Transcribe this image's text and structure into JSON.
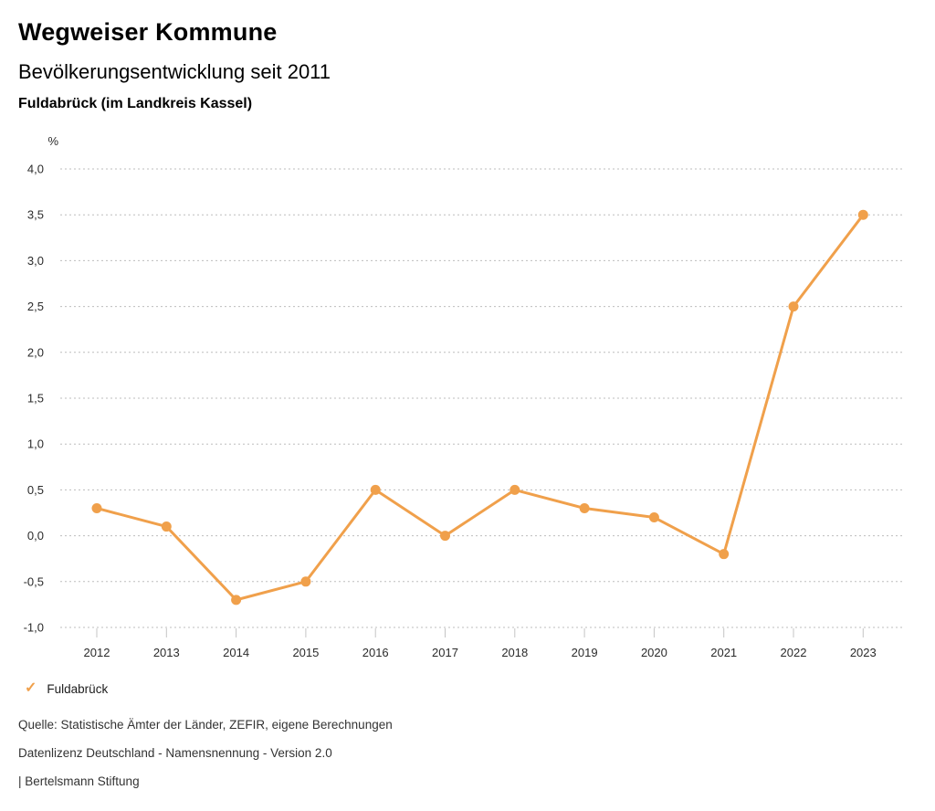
{
  "header": {
    "title": "Wegweiser Kommune",
    "subtitle": "Bevölkerungsentwicklung seit 2011",
    "location": "Fuldabrück (im Landkreis Kassel)"
  },
  "chart_data": {
    "type": "line",
    "title": "Bevölkerungsentwicklung seit 2011",
    "location": "Fuldabrück (im Landkreis Kassel)",
    "ylabel": "%",
    "xlabel": "",
    "categories": [
      "2012",
      "2013",
      "2014",
      "2015",
      "2016",
      "2017",
      "2018",
      "2019",
      "2020",
      "2021",
      "2022",
      "2023"
    ],
    "series": [
      {
        "name": "Fuldabrück",
        "values": [
          0.3,
          0.1,
          -0.7,
          -0.5,
          0.5,
          0.0,
          0.5,
          0.3,
          0.2,
          -0.2,
          2.5,
          3.5
        ],
        "color": "#F0A04B"
      }
    ],
    "ylim": [
      -1.0,
      4.0
    ],
    "ytick_step": 0.5,
    "grid": "horizontal-dotted",
    "legend_position": "bottom-left",
    "decimal_separator": ","
  },
  "legend": {
    "items": [
      {
        "icon": "check-icon",
        "label": "Fuldabrück",
        "color": "#F0A04B"
      }
    ]
  },
  "footer": {
    "source": "Quelle: Statistische Ämter der Länder, ZEFIR, eigene Berechnungen",
    "license": "Datenlizenz Deutschland - Namensnennung - Version 2.0",
    "attribution": "| Bertelsmann Stiftung"
  },
  "colors": {
    "accent": "#F0A04B",
    "gridline": "#BDBDBD",
    "tick": "#C4C4C4",
    "text": "#2B2B2B"
  }
}
